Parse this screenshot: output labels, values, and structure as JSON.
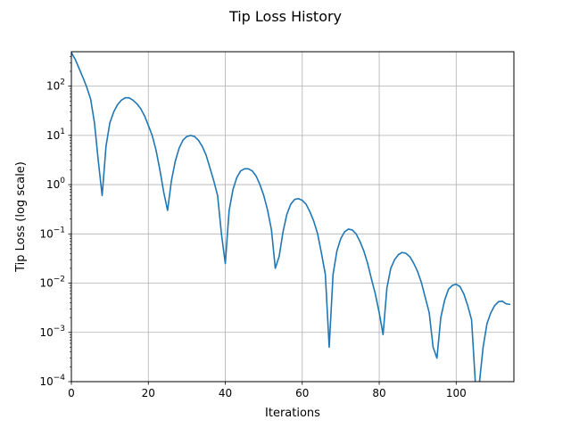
{
  "chart_data": {
    "type": "line",
    "title": "Tip Loss History",
    "xlabel": "Iterations",
    "ylabel": "Tip Loss (log scale)",
    "xlim": [
      0,
      115
    ],
    "ylim": [
      0.0001,
      500
    ],
    "yscale": "log",
    "grid": true,
    "x_ticks": [
      0,
      20,
      40,
      60,
      80,
      100
    ],
    "y_ticks": [
      {
        "value": 0.0001,
        "base": "10",
        "exp": "−4"
      },
      {
        "value": 0.001,
        "base": "10",
        "exp": "−3"
      },
      {
        "value": 0.01,
        "base": "10",
        "exp": "−2"
      },
      {
        "value": 0.1,
        "base": "10",
        "exp": "−1"
      },
      {
        "value": 1,
        "base": "10",
        "exp": "0"
      },
      {
        "value": 10,
        "base": "10",
        "exp": "1"
      },
      {
        "value": 100,
        "base": "10",
        "exp": "2"
      }
    ],
    "series": [
      {
        "color": "#1f77b4",
        "x": [
          0,
          1,
          2,
          3,
          4,
          5,
          6,
          7,
          8,
          9,
          10,
          11,
          12,
          13,
          14,
          15,
          16,
          17,
          18,
          19,
          20,
          21,
          22,
          23,
          24,
          25,
          26,
          27,
          28,
          29,
          30,
          31,
          32,
          33,
          34,
          35,
          36,
          37,
          38,
          39,
          40,
          41,
          42,
          43,
          44,
          45,
          46,
          47,
          48,
          49,
          50,
          51,
          52,
          53,
          54,
          55,
          56,
          57,
          58,
          59,
          60,
          61,
          62,
          63,
          64,
          65,
          66,
          67,
          68,
          69,
          70,
          71,
          72,
          73,
          74,
          75,
          76,
          77,
          78,
          79,
          80,
          81,
          82,
          83,
          84,
          85,
          86,
          87,
          88,
          89,
          90,
          91,
          92,
          93,
          94,
          95,
          96,
          97,
          98,
          99,
          100,
          101,
          102,
          103,
          104,
          105,
          106,
          107,
          108,
          109,
          110,
          111,
          112,
          113,
          114
        ],
        "y": [
          480,
          350,
          230,
          150,
          95,
          55,
          18,
          3,
          0.6,
          6,
          18,
          30,
          42,
          52,
          58,
          58,
          52,
          44,
          35,
          25,
          16,
          10,
          5,
          2,
          0.7,
          0.3,
          1.2,
          3,
          5.5,
          8,
          9.5,
          10,
          9.5,
          8,
          6,
          4,
          2.2,
          1.2,
          0.6,
          0.1,
          0.025,
          0.3,
          0.8,
          1.4,
          1.9,
          2.1,
          2.1,
          1.9,
          1.5,
          1,
          0.6,
          0.3,
          0.12,
          0.02,
          0.035,
          0.11,
          0.25,
          0.4,
          0.5,
          0.52,
          0.48,
          0.4,
          0.28,
          0.18,
          0.1,
          0.04,
          0.015,
          0.0005,
          0.015,
          0.045,
          0.08,
          0.11,
          0.125,
          0.12,
          0.1,
          0.07,
          0.045,
          0.025,
          0.012,
          0.006,
          0.0025,
          0.0009,
          0.008,
          0.02,
          0.03,
          0.038,
          0.042,
          0.04,
          0.034,
          0.025,
          0.017,
          0.01,
          0.005,
          0.0025,
          0.0005,
          0.0003,
          0.002,
          0.0045,
          0.0075,
          0.009,
          0.0095,
          0.0085,
          0.006,
          0.0035,
          0.0018,
          9e-05,
          9e-05,
          0.0005,
          0.0015,
          0.0025,
          0.0035,
          0.0042,
          0.0043,
          0.0038,
          0.0037
        ]
      }
    ]
  }
}
